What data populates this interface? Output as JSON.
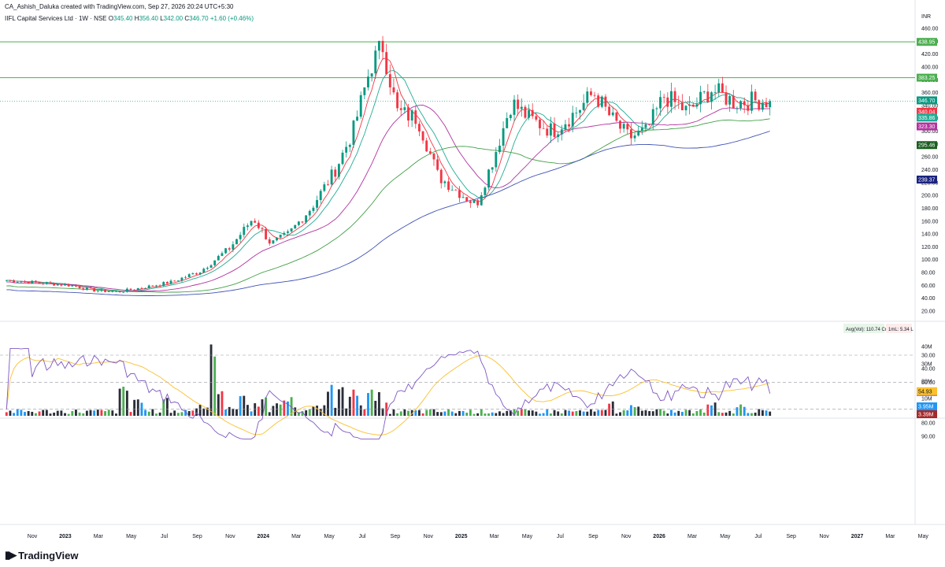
{
  "header": {
    "credit": "CA_Ashish_Daluka created with TradingView.com, Sep 27, 2026 20:24 UTC+5:30"
  },
  "symbol": {
    "name": "IIFL Capital Services Ltd · 1W · NSE",
    "o_label": "O",
    "o": "345.40",
    "h_label": "H",
    "h": "356.40",
    "l_label": "L",
    "l": "342.00",
    "c_label": "C",
    "c": "346.70",
    "change": "+1.60 (+0.46%)"
  },
  "brand": "TradingView",
  "price_axis": {
    "unit": "INR",
    "ticks": [
      "460.00",
      "440.00",
      "420.00",
      "400.00",
      "380.00",
      "360.00",
      "340.00",
      "320.00",
      "300.00",
      "280.00",
      "260.00",
      "240.00",
      "220.00",
      "200.00",
      "180.00",
      "160.00",
      "140.00",
      "120.00",
      "100.00",
      "80.00",
      "60.00",
      "40.00",
      "20.00"
    ]
  },
  "volume_axis": {
    "ticks": [
      "40M",
      "30M",
      "20M",
      "10M"
    ]
  },
  "rsi_axis": {
    "ticks": [
      "90.00",
      "80.00",
      "70.00",
      "50.00",
      "40.00",
      "30.00"
    ]
  },
  "time_axis": [
    "Nov",
    "2023",
    "Mar",
    "May",
    "Jul",
    "Sep",
    "Nov",
    "2024",
    "Mar",
    "May",
    "Jul",
    "Sep",
    "Nov",
    "2025",
    "Mar",
    "May",
    "Jul",
    "Sep",
    "Nov",
    "2026",
    "Mar",
    "May",
    "Jul",
    "Sep",
    "Nov",
    "2027",
    "Mar",
    "May"
  ],
  "badges": {
    "level_top": "438.95",
    "level_mid": "383.25",
    "close": "346.70",
    "ma1": "340.04",
    "ma2": "335.86",
    "ma3": "323.30",
    "ma4": "295.46",
    "ma5": "239.37",
    "vol1": "3.95M",
    "vol2": "3.39M",
    "rsi": "58.39",
    "rsi_ma": "54.93"
  },
  "volume_legend": {
    "avg": "Avg(Vol): 110.74 Cr",
    "lml": "1mL: 5.34 L"
  },
  "colors": {
    "up": "#089981",
    "down": "#f23645",
    "vol_up": "#4caf50",
    "vol_down": "#f23645",
    "vol_neutral": "#2a2e39",
    "vol_blue": "#2196f3",
    "ma1": "#f23645",
    "ma2": "#22ab94",
    "ma3": "#b2339f",
    "ma4": "#43a047",
    "ma5": "#3f51b5",
    "level": "#4caf50",
    "rsi": "#7e57c2",
    "rsi_ma": "#fbc02d",
    "close_line": "#089981"
  },
  "chart_data": {
    "type": "line",
    "title": "",
    "price_range": [
      20,
      460
    ],
    "horizontal_levels": [
      438.95,
      383.25
    ],
    "x": [
      "2022-10",
      "2022-12",
      "2023-02",
      "2023-04",
      "2023-06",
      "2023-08",
      "2023-10",
      "2023-12",
      "2024-02",
      "2024-04",
      "2024-06",
      "2024-08",
      "2024-10",
      "2024-12",
      "2025-02",
      "2025-04",
      "2025-06",
      "2025-08",
      "2025-10",
      "2025-12",
      "2026-02",
      "2026-04",
      "2026-06",
      "2026-08",
      "2026-09"
    ],
    "series": [
      {
        "values": [
          68,
          64,
          61,
          52,
          55,
          62,
          80,
          118,
          165,
          130,
          150,
          215,
          360,
          330,
          240,
          195,
          300,
          315,
          330,
          355,
          290,
          330,
          355,
          342,
          346.7
        ]
      }
    ],
    "ma_last_values": [
      340.04,
      335.86,
      323.3,
      295.46,
      239.37
    ],
    "rsi_last": 58.39,
    "rsi_ma_last": 54.93,
    "rsi_levels": [
      70,
      50,
      30
    ]
  }
}
